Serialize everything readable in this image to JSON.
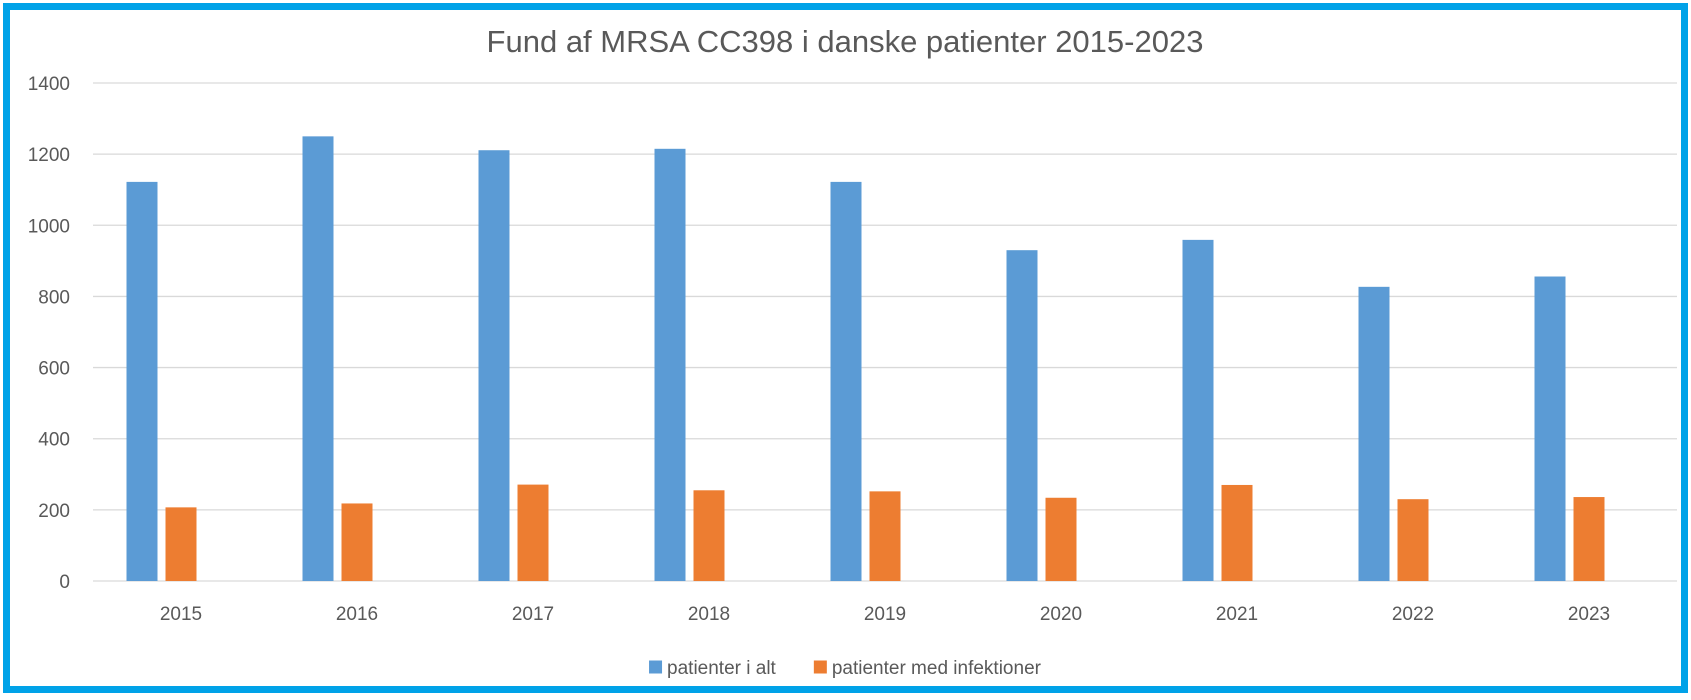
{
  "chart_data": {
    "type": "bar",
    "title": "Fund af MRSA CC398 i danske patienter 2015-2023",
    "xlabel": "",
    "ylabel": "",
    "ylim": [
      0,
      1400
    ],
    "yticks": [
      0,
      200,
      400,
      600,
      800,
      1000,
      1200,
      1400
    ],
    "ytick_labels": [
      "0",
      "200",
      "400",
      "600",
      "800",
      "1000",
      "1200",
      "1400"
    ],
    "grid": true,
    "legend_position": "bottom",
    "categories": [
      "2015",
      "2016",
      "2017",
      "2018",
      "2019",
      "2020",
      "2021",
      "2022",
      "2023"
    ],
    "series": [
      {
        "name": "patienter i alt",
        "color": "#5b9bd5",
        "values": [
          1122,
          1250,
          1211,
          1215,
          1122,
          930,
          959,
          827,
          856
        ]
      },
      {
        "name": "patienter med infektioner",
        "color": "#ed7d31",
        "values": [
          207,
          218,
          271,
          255,
          252,
          234,
          270,
          230,
          236
        ]
      }
    ]
  },
  "colors": {
    "frame_border": "#00a2e8",
    "text": "#595959",
    "gridline": "#d9d9d9"
  }
}
